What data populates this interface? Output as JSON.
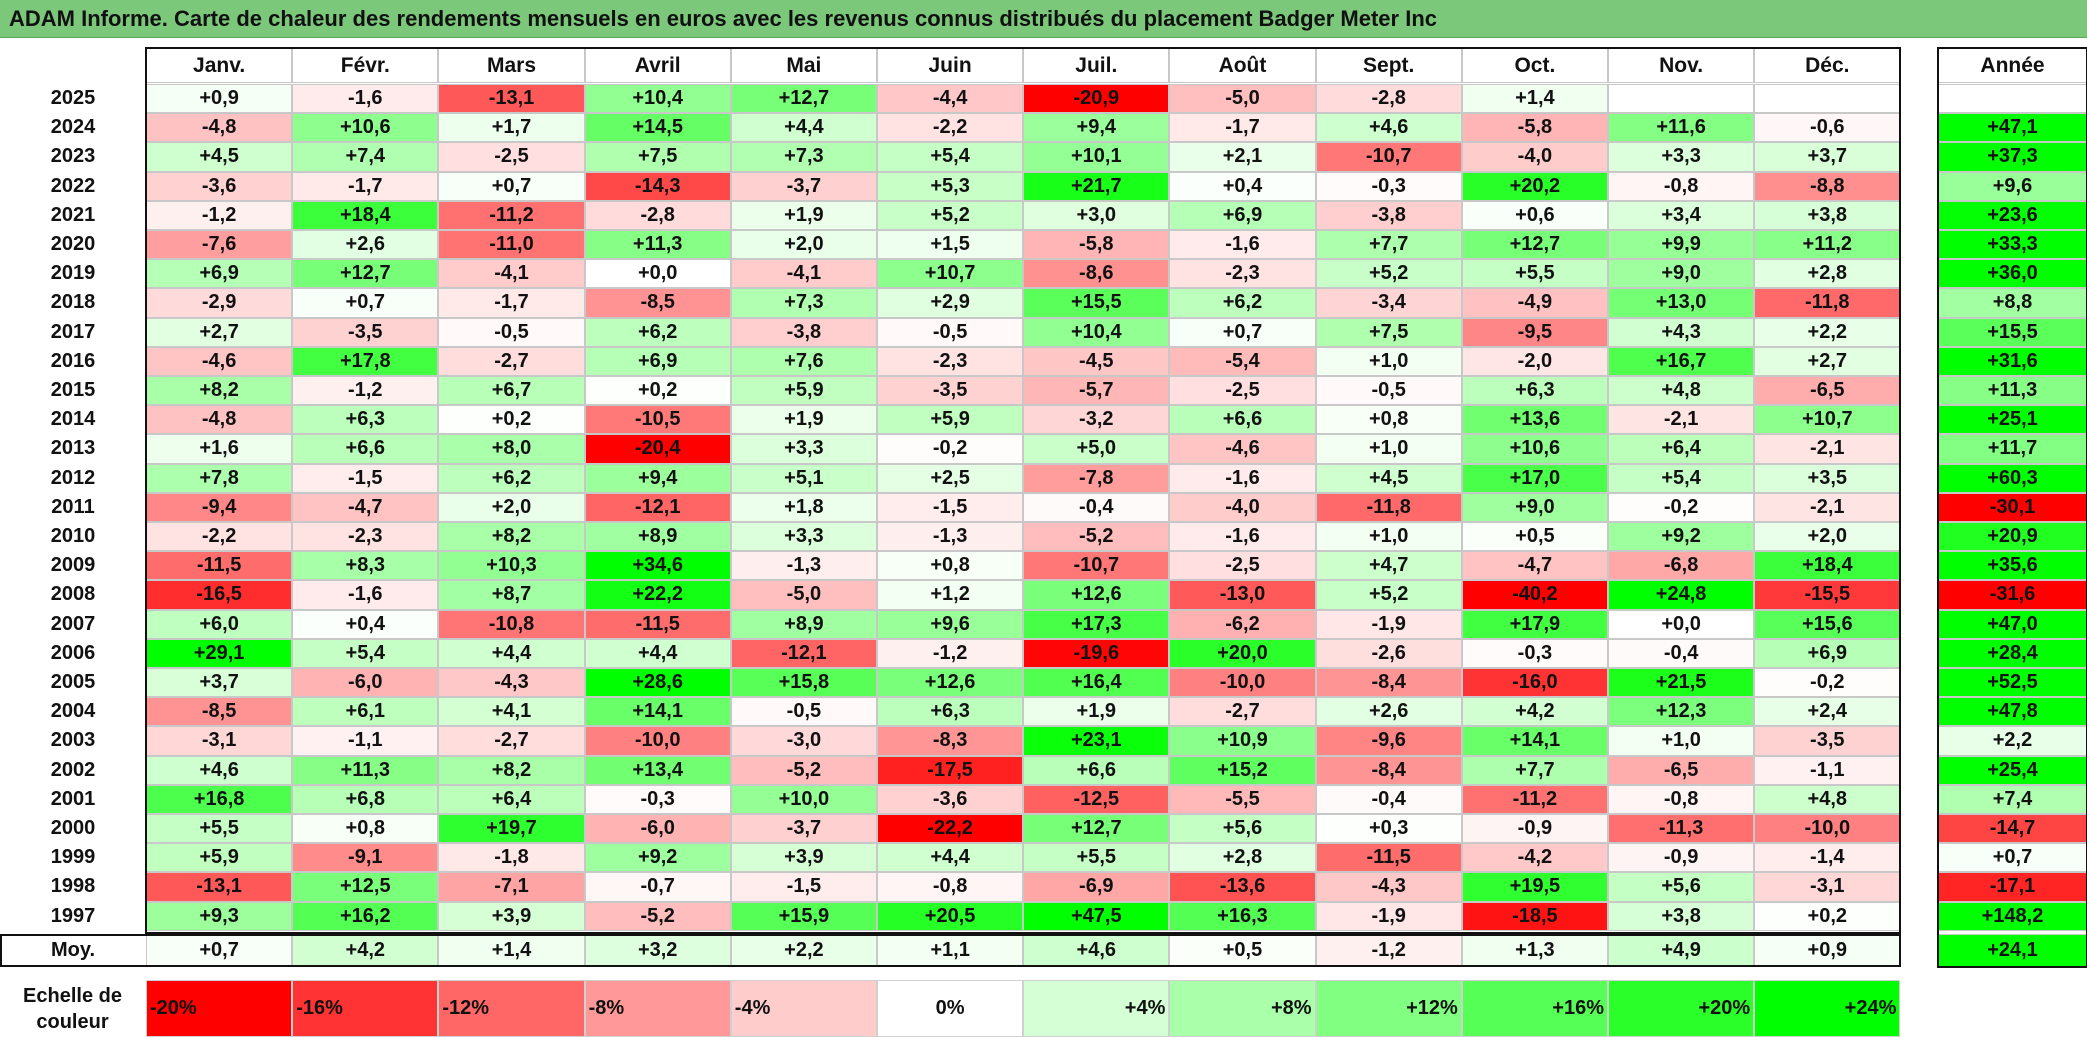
{
  "title": "ADAM Informe. Carte de chaleur des rendements mensuels en euros avec les revenus connus distribués du placement Badger Meter Inc",
  "chart_data": {
    "type": "heatmap",
    "title": "ADAM Informe. Carte de chaleur des rendements mensuels en euros avec les revenus connus distribués du placement Badger Meter Inc",
    "columns": [
      "Janv.",
      "Févr.",
      "Mars",
      "Avril",
      "Mai",
      "Juin",
      "Juil.",
      "Août",
      "Sept.",
      "Oct.",
      "Nov.",
      "Déc."
    ],
    "annual_label": "Année",
    "rows": [
      {
        "year": "2025",
        "values": [
          0.9,
          -1.6,
          -13.1,
          10.4,
          12.7,
          -4.4,
          -20.9,
          -5.0,
          -2.8,
          1.4,
          null,
          null
        ],
        "annual": null
      },
      {
        "year": "2024",
        "values": [
          -4.8,
          10.6,
          1.7,
          14.5,
          4.4,
          -2.2,
          9.4,
          -1.7,
          4.6,
          -5.8,
          11.6,
          -0.6
        ],
        "annual": 47.1
      },
      {
        "year": "2023",
        "values": [
          4.5,
          7.4,
          -2.5,
          7.5,
          7.3,
          5.4,
          10.1,
          2.1,
          -10.7,
          -4.0,
          3.3,
          3.7
        ],
        "annual": 37.3
      },
      {
        "year": "2022",
        "values": [
          -3.6,
          -1.7,
          0.7,
          -14.3,
          -3.7,
          5.3,
          21.7,
          0.4,
          -0.3,
          20.2,
          -0.8,
          -8.8
        ],
        "annual": 9.6
      },
      {
        "year": "2021",
        "values": [
          -1.2,
          18.4,
          -11.2,
          -2.8,
          1.9,
          5.2,
          3.0,
          6.9,
          -3.8,
          0.6,
          3.4,
          3.8
        ],
        "annual": 23.6
      },
      {
        "year": "2020",
        "values": [
          -7.6,
          2.6,
          -11.0,
          11.3,
          2.0,
          1.5,
          -5.8,
          -1.6,
          7.7,
          12.7,
          9.9,
          11.2
        ],
        "annual": 33.3
      },
      {
        "year": "2019",
        "values": [
          6.9,
          12.7,
          -4.1,
          0.0,
          -4.1,
          10.7,
          -8.6,
          -2.3,
          5.2,
          5.5,
          9.0,
          2.8
        ],
        "annual": 36.0
      },
      {
        "year": "2018",
        "values": [
          -2.9,
          0.7,
          -1.7,
          -8.5,
          7.3,
          2.9,
          15.5,
          6.2,
          -3.4,
          -4.9,
          13.0,
          -11.8
        ],
        "annual": 8.8
      },
      {
        "year": "2017",
        "values": [
          2.7,
          -3.5,
          -0.5,
          6.2,
          -3.8,
          -0.5,
          10.4,
          0.7,
          7.5,
          -9.5,
          4.3,
          2.2
        ],
        "annual": 15.5
      },
      {
        "year": "2016",
        "values": [
          -4.6,
          17.8,
          -2.7,
          6.9,
          7.6,
          -2.3,
          -4.5,
          -5.4,
          1.0,
          -2.0,
          16.7,
          2.7
        ],
        "annual": 31.6
      },
      {
        "year": "2015",
        "values": [
          8.2,
          -1.2,
          6.7,
          0.2,
          5.9,
          -3.5,
          -5.7,
          -2.5,
          -0.5,
          6.3,
          4.8,
          -6.5
        ],
        "annual": 11.3
      },
      {
        "year": "2014",
        "values": [
          -4.8,
          6.3,
          0.2,
          -10.5,
          1.9,
          5.9,
          -3.2,
          6.6,
          0.8,
          13.6,
          -2.1,
          10.7
        ],
        "annual": 25.1
      },
      {
        "year": "2013",
        "values": [
          1.6,
          6.6,
          8.0,
          -20.4,
          3.3,
          -0.2,
          5.0,
          -4.6,
          1.0,
          10.6,
          6.4,
          -2.1
        ],
        "annual": 11.7
      },
      {
        "year": "2012",
        "values": [
          7.8,
          -1.5,
          6.2,
          9.4,
          5.1,
          2.5,
          -7.8,
          -1.6,
          4.5,
          17.0,
          5.4,
          3.5
        ],
        "annual": 60.3
      },
      {
        "year": "2011",
        "values": [
          -9.4,
          -4.7,
          2.0,
          -12.1,
          1.8,
          -1.5,
          -0.4,
          -4.0,
          -11.8,
          9.0,
          -0.2,
          -2.1
        ],
        "annual": -30.1
      },
      {
        "year": "2010",
        "values": [
          -2.2,
          -2.3,
          8.2,
          8.9,
          3.3,
          -1.3,
          -5.2,
          -1.6,
          1.0,
          0.5,
          9.2,
          2.0
        ],
        "annual": 20.9
      },
      {
        "year": "2009",
        "values": [
          -11.5,
          8.3,
          10.3,
          34.6,
          -1.3,
          0.8,
          -10.7,
          -2.5,
          4.7,
          -4.7,
          -6.8,
          18.4
        ],
        "annual": 35.6
      },
      {
        "year": "2008",
        "values": [
          -16.5,
          -1.6,
          8.7,
          22.2,
          -5.0,
          1.2,
          12.6,
          -13.0,
          5.2,
          -40.2,
          24.8,
          -15.5
        ],
        "annual": -31.6
      },
      {
        "year": "2007",
        "values": [
          6.0,
          0.4,
          -10.8,
          -11.5,
          8.9,
          9.6,
          17.3,
          -6.2,
          -1.9,
          17.9,
          0.0,
          15.6
        ],
        "annual": 47.0
      },
      {
        "year": "2006",
        "values": [
          29.1,
          5.4,
          4.4,
          4.4,
          -12.1,
          -1.2,
          -19.6,
          20.0,
          -2.6,
          -0.3,
          -0.4,
          6.9
        ],
        "annual": 28.4
      },
      {
        "year": "2005",
        "values": [
          3.7,
          -6.0,
          -4.3,
          28.6,
          15.8,
          12.6,
          16.4,
          -10.0,
          -8.4,
          -16.0,
          21.5,
          -0.2
        ],
        "annual": 52.5
      },
      {
        "year": "2004",
        "values": [
          -8.5,
          6.1,
          4.1,
          14.1,
          -0.5,
          6.3,
          1.9,
          -2.7,
          2.6,
          4.2,
          12.3,
          2.4
        ],
        "annual": 47.8
      },
      {
        "year": "2003",
        "values": [
          -3.1,
          -1.1,
          -2.7,
          -10.0,
          -3.0,
          -8.3,
          23.1,
          10.9,
          -9.6,
          14.1,
          1.0,
          -3.5
        ],
        "annual": 2.2
      },
      {
        "year": "2002",
        "values": [
          4.6,
          11.3,
          8.2,
          13.4,
          -5.2,
          -17.5,
          6.6,
          15.2,
          -8.4,
          7.7,
          -6.5,
          -1.1
        ],
        "annual": 25.4
      },
      {
        "year": "2001",
        "values": [
          16.8,
          6.8,
          6.4,
          -0.3,
          10.0,
          -3.6,
          -12.5,
          -5.5,
          -0.4,
          -11.2,
          -0.8,
          4.8
        ],
        "annual": 7.4
      },
      {
        "year": "2000",
        "values": [
          5.5,
          0.8,
          19.7,
          -6.0,
          -3.7,
          -22.2,
          12.7,
          5.6,
          0.3,
          -0.9,
          -11.3,
          -10.0
        ],
        "annual": -14.7
      },
      {
        "year": "1999",
        "values": [
          5.9,
          -9.1,
          -1.8,
          9.2,
          3.9,
          4.4,
          5.5,
          2.8,
          -11.5,
          -4.2,
          -0.9,
          -1.4
        ],
        "annual": 0.7
      },
      {
        "year": "1998",
        "values": [
          -13.1,
          12.5,
          -7.1,
          -0.7,
          -1.5,
          -0.8,
          -6.9,
          -13.6,
          -4.3,
          19.5,
          5.6,
          -3.1
        ],
        "annual": -17.1
      },
      {
        "year": "1997",
        "values": [
          9.3,
          16.2,
          3.9,
          -5.2,
          15.9,
          20.5,
          47.5,
          16.3,
          -1.9,
          -18.5,
          3.8,
          0.2
        ],
        "annual": 148.2
      }
    ],
    "average": {
      "label": "Moy.",
      "values": [
        0.7,
        4.2,
        1.4,
        3.2,
        2.2,
        1.1,
        4.6,
        0.5,
        -1.2,
        1.3,
        4.9,
        0.9
      ],
      "annual": 24.1
    },
    "color_scale": {
      "label": "Echelle de couleur",
      "stops": [
        "-20%",
        "-16%",
        "-12%",
        "-8%",
        "-4%",
        "0%",
        "+4%",
        "+8%",
        "+12%",
        "+16%",
        "+20%",
        "+24%"
      ],
      "stop_values": [
        -20,
        -16,
        -12,
        -8,
        -4,
        0,
        4,
        8,
        12,
        16,
        20,
        24
      ],
      "negative_color": "#ff0000",
      "positive_color": "#00ff00",
      "neutral_color": "#ffffff"
    }
  }
}
